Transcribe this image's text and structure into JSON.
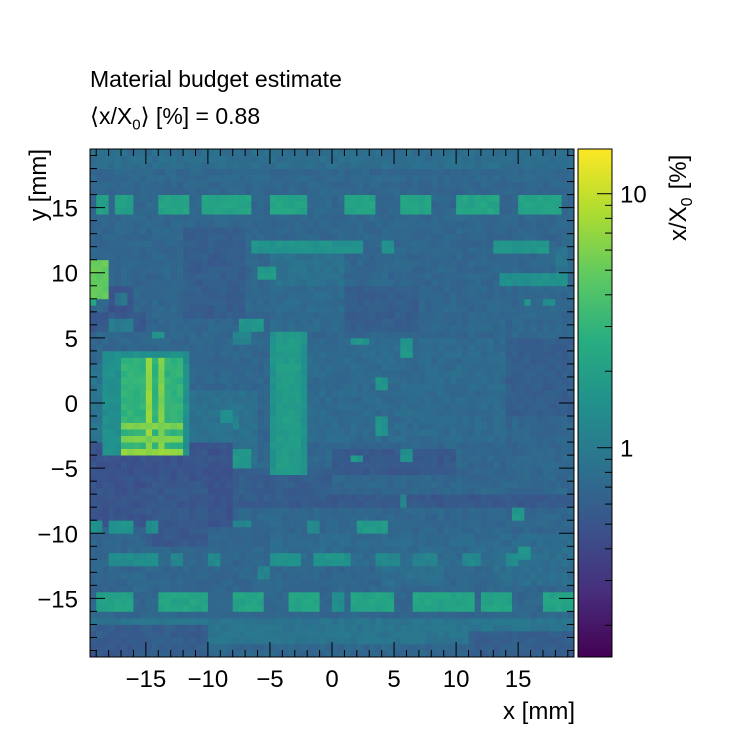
{
  "chart_data": {
    "type": "heatmap",
    "title": "Material budget estimate",
    "subtitle": "⟨x/X₀⟩ [%] = 0.88",
    "subtitle_parts": {
      "open": "⟨x/X",
      "sub": "0",
      "close": "⟩ [%] = 0.88"
    },
    "xlabel": "x [mm]",
    "ylabel": "y [mm]",
    "xlim": [
      -19.5,
      19.5
    ],
    "ylim": [
      -19.5,
      19.5
    ],
    "xticks": [
      -15,
      -10,
      -5,
      0,
      5,
      10,
      15
    ],
    "xtick_labels": [
      "−15",
      "−10",
      "−5",
      "0",
      "5",
      "10",
      "15"
    ],
    "yticks": [
      15,
      10,
      5,
      0,
      -5,
      -10,
      -15
    ],
    "ytick_labels": [
      "15",
      "10",
      "5",
      "0",
      "−5",
      "−10",
      "−15"
    ],
    "grid": false,
    "colorbar": {
      "label_main": "x/X",
      "label_sub": "0",
      "label_unit": "[%]",
      "scale": "log",
      "range": [
        0.15,
        15
      ],
      "ticks": [
        1,
        10
      ],
      "tick_labels": [
        "1",
        "10"
      ]
    },
    "mean_value_percent": 0.88,
    "background_value": 0.7,
    "regions": [
      {
        "x": [
          -19.5,
          19.5
        ],
        "y": [
          -19.5,
          19.5
        ],
        "value": 0.7
      },
      {
        "x": [
          -19.5,
          19.5
        ],
        "y": [
          -18.5,
          -16.5
        ],
        "value": 0.9
      },
      {
        "x": [
          -19.5,
          -15
        ],
        "y": [
          -6.5,
          -5
        ],
        "value": 0.55
      },
      {
        "x": [
          -19.5,
          19.5
        ],
        "y": [
          -8,
          -7
        ],
        "value": 0.55
      },
      {
        "x": [
          -19.5,
          -10.5
        ],
        "y": [
          -8,
          -1
        ],
        "value": 0.85
      },
      {
        "x": [
          -12,
          -6
        ],
        "y": [
          -6,
          1
        ],
        "value": 0.85
      },
      {
        "x": [
          -8,
          0
        ],
        "y": [
          -7.5,
          -5
        ],
        "value": 0.6
      },
      {
        "x": [
          0,
          10
        ],
        "y": [
          -5.5,
          -3.5
        ],
        "value": 0.55
      },
      {
        "x": [
          -19.5,
          -8
        ],
        "y": [
          -9.5,
          -3
        ],
        "value": 0.5
      },
      {
        "x": [
          -19.5,
          -10
        ],
        "y": [
          -19.5,
          -17
        ],
        "value": 0.6
      },
      {
        "x": [
          -19.5,
          -15
        ],
        "y": [
          5.5,
          7
        ],
        "value": 0.55
      },
      {
        "x": [
          -15,
          -10
        ],
        "y": [
          -11,
          -6
        ],
        "value": 0.55
      },
      {
        "x": [
          -12,
          -7
        ],
        "y": [
          6.5,
          13.5
        ],
        "value": 0.6
      },
      {
        "x": [
          -5,
          1
        ],
        "y": [
          8,
          12
        ],
        "value": 0.85
      },
      {
        "x": [
          -5,
          5
        ],
        "y": [
          5.5,
          9
        ],
        "value": 0.75
      },
      {
        "x": [
          1,
          7
        ],
        "y": [
          5.5,
          9
        ],
        "value": 0.6
      },
      {
        "x": [
          9,
          19.5
        ],
        "y": [
          -1,
          5
        ],
        "value": 0.6
      },
      {
        "x": [
          -19.5,
          19.5
        ],
        "y": [
          18,
          19.5
        ],
        "value": 0.8
      },
      {
        "x": [
          11,
          19.5
        ],
        "y": [
          -19.5,
          -17.5
        ],
        "value": 0.6
      },
      {
        "x": [
          -4,
          14
        ],
        "y": [
          -3,
          5
        ],
        "value": 0.75
      },
      {
        "x": [
          -5,
          19.5
        ],
        "y": [
          -12.5,
          -10
        ],
        "value": 0.75
      },
      {
        "x": [
          -19.5,
          -17
        ],
        "y": [
          -2,
          3
        ],
        "value": 0.9
      },
      {
        "x": [
          4,
          9
        ],
        "y": [
          -14,
          -12
        ],
        "value": 0.8
      },
      {
        "x": [
          13,
          19.5
        ],
        "y": [
          -14,
          -11
        ],
        "value": 0.8
      },
      {
        "x": [
          -18,
          -16
        ],
        "y": [
          7,
          9
        ],
        "value": 0.5
      },
      {
        "x": [
          -17.5,
          -16.5
        ],
        "y": [
          7.5,
          8.5
        ],
        "value": 0.9
      },
      {
        "x": [
          -19.5,
          -16
        ],
        "y": [
          -19.5,
          -18
        ],
        "value": 0.55
      },
      {
        "x": [
          -19.5,
          19.5
        ],
        "y": [
          16.8,
          17.6
        ],
        "value": 0.72
      },
      {
        "x": [
          -19,
          -18
        ],
        "y": [
          14.5,
          16
        ],
        "value": 2.0
      },
      {
        "x": [
          -17.5,
          -16
        ],
        "y": [
          14.5,
          16
        ],
        "value": 2.0
      },
      {
        "x": [
          -14,
          -11.5
        ],
        "y": [
          14.5,
          16
        ],
        "value": 2.2
      },
      {
        "x": [
          -10.5,
          -6.5
        ],
        "y": [
          14.5,
          16
        ],
        "value": 2.2
      },
      {
        "x": [
          -5,
          -2
        ],
        "y": [
          14.5,
          16
        ],
        "value": 2.2
      },
      {
        "x": [
          1,
          3.5
        ],
        "y": [
          14.5,
          16
        ],
        "value": 2.2
      },
      {
        "x": [
          5.5,
          8
        ],
        "y": [
          14.5,
          16
        ],
        "value": 2.2
      },
      {
        "x": [
          10,
          13.5
        ],
        "y": [
          14.5,
          16
        ],
        "value": 2.2
      },
      {
        "x": [
          15,
          18.5
        ],
        "y": [
          14.5,
          16
        ],
        "value": 2.2
      },
      {
        "x": [
          -6.5,
          2.5
        ],
        "y": [
          11.5,
          12.5
        ],
        "value": 1.6
      },
      {
        "x": [
          4,
          5
        ],
        "y": [
          11.5,
          12.5
        ],
        "value": 1.6
      },
      {
        "x": [
          13,
          17.5
        ],
        "y": [
          11.5,
          12.5
        ],
        "value": 1.7
      },
      {
        "x": [
          -6,
          -4.5
        ],
        "y": [
          9.5,
          10.5
        ],
        "value": 1.8
      },
      {
        "x": [
          13.5,
          19
        ],
        "y": [
          9,
          10
        ],
        "value": 1.5
      },
      {
        "x": [
          15.5,
          16
        ],
        "y": [
          7.5,
          8
        ],
        "value": 1.5
      },
      {
        "x": [
          17,
          18
        ],
        "y": [
          7.5,
          8
        ],
        "value": 1.4
      },
      {
        "x": [
          18,
          19
        ],
        "y": [
          10,
          12
        ],
        "value": 0.9
      },
      {
        "x": [
          -19.5,
          -18
        ],
        "y": [
          8,
          11
        ],
        "value": 5.0
      },
      {
        "x": [
          -19.5,
          -19
        ],
        "y": [
          7.5,
          8
        ],
        "value": 2.5
      },
      {
        "x": [
          -18,
          -16
        ],
        "y": [
          5.5,
          6.5
        ],
        "value": 1.0
      },
      {
        "x": [
          -14.5,
          -13.5
        ],
        "y": [
          5,
          5.5
        ],
        "value": 1.5
      },
      {
        "x": [
          -8,
          -6.5
        ],
        "y": [
          4.5,
          5.5
        ],
        "value": 1.2
      },
      {
        "x": [
          -7.5,
          -5.5
        ],
        "y": [
          5.5,
          6.5
        ],
        "value": 1.7
      },
      {
        "x": [
          1.5,
          3
        ],
        "y": [
          4.5,
          5
        ],
        "value": 1.6
      },
      {
        "x": [
          5.5,
          6.5
        ],
        "y": [
          3.5,
          5
        ],
        "value": 1.7
      },
      {
        "x": [
          3.5,
          4.5
        ],
        "y": [
          1,
          2
        ],
        "value": 1.7
      },
      {
        "x": [
          3.5,
          4.5
        ],
        "y": [
          -2.5,
          -1
        ],
        "value": 1.6
      },
      {
        "x": [
          5.5,
          6.5
        ],
        "y": [
          -4.5,
          -3.5
        ],
        "value": 1.5
      },
      {
        "x": [
          1.5,
          2.5
        ],
        "y": [
          -4.5,
          -4
        ],
        "value": 1.7
      },
      {
        "x": [
          -8,
          -6.5
        ],
        "y": [
          -5,
          -3.5
        ],
        "value": 1.7
      },
      {
        "x": [
          -9,
          -8
        ],
        "y": [
          -1.5,
          -0.5
        ],
        "value": 1.4
      },
      {
        "x": [
          -8,
          -7.5
        ],
        "y": [
          -2,
          -1
        ],
        "value": 1.2
      },
      {
        "x": [
          5.5,
          6
        ],
        "y": [
          -8,
          -7
        ],
        "value": 1.2
      },
      {
        "x": [
          -18.5,
          -11.5
        ],
        "y": [
          -4,
          4
        ],
        "value": 1.5
      },
      {
        "x": [
          -17,
          -12
        ],
        "y": [
          -4,
          3.5
        ],
        "value": 3.0
      },
      {
        "x": [
          -15,
          -14.5
        ],
        "y": [
          -4,
          3.5
        ],
        "value": 7.0
      },
      {
        "x": [
          -14,
          -13.5
        ],
        "y": [
          -4,
          3.5
        ],
        "value": 6.0
      },
      {
        "x": [
          -17,
          -12
        ],
        "y": [
          -1.8,
          -1.4
        ],
        "value": 6.0
      },
      {
        "x": [
          -17,
          -12
        ],
        "y": [
          -2.8,
          -2.4
        ],
        "value": 6.0
      },
      {
        "x": [
          -17,
          -12
        ],
        "y": [
          -3.8,
          -3.4
        ],
        "value": 7.0
      },
      {
        "x": [
          -5,
          -2
        ],
        "y": [
          -5.5,
          5.5
        ],
        "value": 1.6
      },
      {
        "x": [
          -4.5,
          -2.5
        ],
        "y": [
          -5.5,
          5.5
        ],
        "value": 1.9
      },
      {
        "x": [
          -19.5,
          -18.5
        ],
        "y": [
          -10,
          -9
        ],
        "value": 1.5
      },
      {
        "x": [
          -18,
          -16
        ],
        "y": [
          -10,
          -9
        ],
        "value": 1.6
      },
      {
        "x": [
          -15,
          -14
        ],
        "y": [
          -10,
          -9
        ],
        "value": 1.4
      },
      {
        "x": [
          -8,
          -6.5
        ],
        "y": [
          -9.5,
          -9
        ],
        "value": 1.2
      },
      {
        "x": [
          -2,
          -1
        ],
        "y": [
          -10,
          -9
        ],
        "value": 1.3
      },
      {
        "x": [
          2,
          4.5
        ],
        "y": [
          -10,
          -9
        ],
        "value": 1.8
      },
      {
        "x": [
          14.5,
          15.5
        ],
        "y": [
          -9,
          -8
        ],
        "value": 1.7
      },
      {
        "x": [
          15,
          16
        ],
        "y": [
          -12,
          -11
        ],
        "value": 1.6
      },
      {
        "x": [
          -18,
          -16
        ],
        "y": [
          -12.5,
          -11.5
        ],
        "value": 1.4
      },
      {
        "x": [
          -16,
          -14
        ],
        "y": [
          -12.5,
          -11.5
        ],
        "value": 1.4
      },
      {
        "x": [
          -13,
          -12
        ],
        "y": [
          -12.5,
          -11.5
        ],
        "value": 1.2
      },
      {
        "x": [
          -10,
          -9
        ],
        "y": [
          -12.5,
          -11.5
        ],
        "value": 1.3
      },
      {
        "x": [
          -5,
          -2.5
        ],
        "y": [
          -12.5,
          -11.5
        ],
        "value": 1.5
      },
      {
        "x": [
          -1.5,
          1.5
        ],
        "y": [
          -12.5,
          -11.5
        ],
        "value": 1.6
      },
      {
        "x": [
          3.5,
          5.5
        ],
        "y": [
          -12.5,
          -11.5
        ],
        "value": 1.3
      },
      {
        "x": [
          6.5,
          8.5
        ],
        "y": [
          -12.5,
          -11.5
        ],
        "value": 1.2
      },
      {
        "x": [
          10.5,
          12
        ],
        "y": [
          -12.5,
          -11.5
        ],
        "value": 1.3
      },
      {
        "x": [
          14,
          15
        ],
        "y": [
          -12.5,
          -11.5
        ],
        "value": 1.4
      },
      {
        "x": [
          -6,
          -5
        ],
        "y": [
          -13.5,
          -12.5
        ],
        "value": 1.2
      },
      {
        "x": [
          -19,
          -16
        ],
        "y": [
          -16,
          -14.5
        ],
        "value": 2.2
      },
      {
        "x": [
          -14,
          -10
        ],
        "y": [
          -16,
          -14.5
        ],
        "value": 2.2
      },
      {
        "x": [
          -8,
          -5.5
        ],
        "y": [
          -16,
          -14.5
        ],
        "value": 2.2
      },
      {
        "x": [
          -3.5,
          -1
        ],
        "y": [
          -16,
          -14.5
        ],
        "value": 2.2
      },
      {
        "x": [
          0,
          1
        ],
        "y": [
          -16,
          -14.5
        ],
        "value": 1.4
      },
      {
        "x": [
          1.5,
          5
        ],
        "y": [
          -16,
          -14.5
        ],
        "value": 2.2
      },
      {
        "x": [
          6.5,
          11.5
        ],
        "y": [
          -16,
          -14.5
        ],
        "value": 2.2
      },
      {
        "x": [
          12,
          14.5
        ],
        "y": [
          -16,
          -14.5
        ],
        "value": 2.2
      },
      {
        "x": [
          17,
          19.5
        ],
        "y": [
          -16,
          -14.5
        ],
        "value": 2.2
      }
    ]
  }
}
